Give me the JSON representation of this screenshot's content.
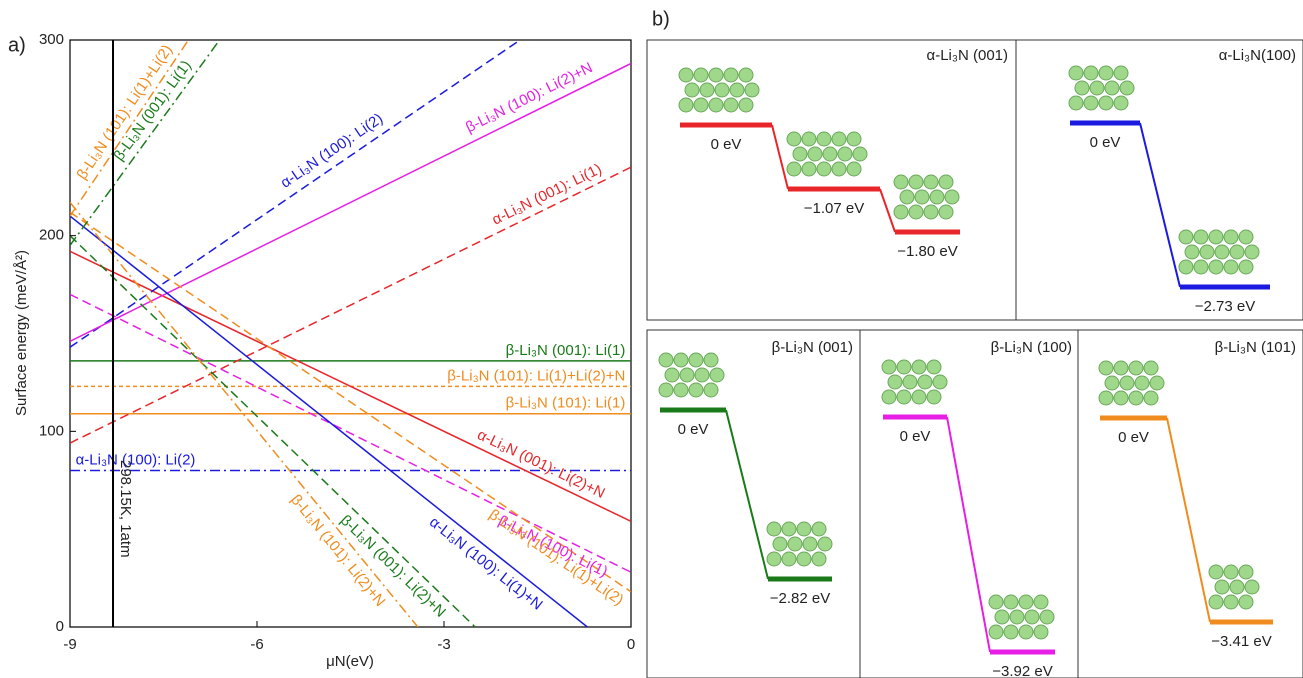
{
  "panel_label": "a)",
  "chart_data": {
    "type": "line",
    "xlabel": "μN(eV)",
    "ylabel": "Surface energy (meV/Å²)",
    "xlim": [
      -9,
      0
    ],
    "xticks": [
      -9,
      -6,
      -3,
      0
    ],
    "ylim": [
      0,
      300
    ],
    "yticks": [
      0,
      100,
      200,
      300
    ],
    "marker_line": {
      "x": -8.31,
      "label": "298.15K, 1atm",
      "color": "#000000"
    },
    "series": [
      {
        "name": "β-Li₃N (001): Li(1)",
        "color": "#1a7a1a",
        "style": "solid",
        "x": [
          -9,
          0
        ],
        "values": [
          136,
          136
        ]
      },
      {
        "name": "β-Li₃N (101): Li(1)+Li(2)+N",
        "color": "#f08c1e",
        "style": "dotted",
        "x": [
          -9,
          0
        ],
        "values": [
          123,
          123
        ]
      },
      {
        "name": "β-Li₃N (101): Li(1)",
        "color": "#f08c1e",
        "style": "solid",
        "x": [
          -9,
          0
        ],
        "values": [
          109,
          109
        ]
      },
      {
        "name": "α-Li₃N (100): Li(2)",
        "color": "#1a1ae0",
        "style": "dashdot",
        "x": [
          -9,
          0
        ],
        "values": [
          80,
          80
        ]
      },
      {
        "name": "α-Li₃N (001): Li(2)+N",
        "color": "#e8262a",
        "style": "solid",
        "x": [
          -9,
          0
        ],
        "values": [
          192,
          54
        ]
      },
      {
        "name": "α-Li₃N (001): Li(1)",
        "color": "#e8262a",
        "style": "dashed",
        "x": [
          -9,
          0
        ],
        "values": [
          94,
          235
        ]
      },
      {
        "name": "α-Li₃N (100): Li(2)",
        "color": "#1a1ae0",
        "style": "dashed",
        "x": [
          -9,
          -1.78
        ],
        "values": [
          143,
          300
        ]
      },
      {
        "name": "β-Li₃N (100): Li(2)+N",
        "color": "#e61ee6",
        "style": "solid",
        "x": [
          -9,
          0
        ],
        "values": [
          146,
          288
        ]
      },
      {
        "name": "β-Li₃N (100): Li(1)",
        "color": "#e61ee6",
        "style": "dashed",
        "x": [
          -9,
          0
        ],
        "values": [
          170,
          28
        ]
      },
      {
        "name": "β-Li₃N (101): Li(1)+Li(2)",
        "color": "#f08c1e",
        "style": "dashed",
        "x": [
          -9,
          0
        ],
        "values": [
          212,
          18
        ]
      },
      {
        "name": "α-Li₃N (100): Li(1)+N",
        "color": "#1a1ae0",
        "style": "solid",
        "x": [
          -9,
          -0.7
        ],
        "values": [
          210,
          0
        ]
      },
      {
        "name": "β-Li₃N (001): Li(2)+N",
        "color": "#1a7a1a",
        "style": "dashed",
        "x": [
          -9,
          -2.5
        ],
        "values": [
          200,
          0
        ]
      },
      {
        "name": "β-Li₃N (101): Li(2)+N",
        "color": "#f08c1e",
        "style": "dashdot",
        "x": [
          -9,
          -3.42
        ],
        "values": [
          217,
          0
        ]
      },
      {
        "name": "β-Li₃N (001): Li(1)",
        "color": "#1a7a1a",
        "style": "dashdot",
        "x": [
          -9,
          -6.6
        ],
        "values": [
          195,
          300
        ]
      },
      {
        "name": "β-Li₃N (101): Li(1)+Li(2)",
        "color": "#f08c1e",
        "style": "dashdot",
        "x": [
          -9,
          -7.1
        ],
        "values": [
          210,
          300
        ]
      }
    ]
  },
  "diagram": {
    "panel_label": "b)",
    "panels": [
      {
        "title": "α-Li₃N (001)",
        "levels": [
          "0 eV",
          "−1.07 eV",
          "−1.80 eV"
        ]
      },
      {
        "title": "α-Li₃N(100)",
        "levels": [
          "0 eV",
          "−2.73 eV"
        ]
      },
      {
        "title": "β-Li₃N (001)",
        "levels": [
          "0 eV",
          "−2.82 eV"
        ]
      },
      {
        "title": "β-Li₃N (100)",
        "levels": [
          "0 eV",
          "−3.92 eV"
        ]
      },
      {
        "title": "β-Li₃N (101)",
        "levels": [
          "0 eV",
          "−3.41 eV"
        ]
      }
    ]
  }
}
